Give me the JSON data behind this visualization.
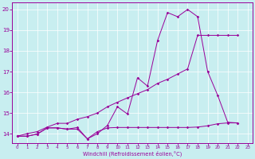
{
  "background_color": "#c8eef0",
  "line_color": "#990099",
  "xlabel": "Windchill (Refroidissement éolien,°C)",
  "xlim": [
    -0.5,
    23.5
  ],
  "ylim": [
    13.55,
    20.35
  ],
  "xtick_vals": [
    0,
    1,
    2,
    3,
    4,
    5,
    6,
    7,
    8,
    9,
    10,
    11,
    12,
    13,
    14,
    15,
    16,
    17,
    18,
    19,
    20,
    21,
    22,
    23
  ],
  "ytick_vals": [
    14,
    15,
    16,
    17,
    18,
    19,
    20
  ],
  "lines": [
    {
      "x": [
        0,
        1,
        2,
        3,
        4,
        5,
        6,
        7,
        8,
        9,
        10,
        11,
        12,
        13,
        14,
        15,
        16,
        17,
        18,
        19,
        20,
        21,
        22
      ],
      "y": [
        13.88,
        13.88,
        13.98,
        14.28,
        14.28,
        14.22,
        14.22,
        13.75,
        14.1,
        14.28,
        14.3,
        14.3,
        14.3,
        14.3,
        14.3,
        14.3,
        14.3,
        14.3,
        14.32,
        14.38,
        14.48,
        14.52,
        14.52
      ]
    },
    {
      "x": [
        0,
        1,
        2,
        3,
        4,
        5,
        6,
        7,
        8,
        9,
        10,
        11,
        12,
        13,
        14,
        15,
        16,
        17,
        18,
        19,
        20,
        21,
        22
      ],
      "y": [
        13.88,
        13.88,
        13.98,
        14.28,
        14.28,
        14.22,
        14.3,
        13.75,
        14.0,
        14.4,
        15.3,
        14.95,
        16.7,
        16.3,
        18.5,
        19.85,
        19.65,
        20.0,
        19.65,
        17.0,
        15.85,
        14.55,
        14.52
      ]
    },
    {
      "x": [
        0,
        1,
        2,
        3,
        4,
        5,
        6,
        7,
        8,
        9,
        10,
        11,
        12,
        13,
        14,
        15,
        16,
        17,
        18,
        19,
        20,
        21,
        22
      ],
      "y": [
        13.88,
        14.0,
        14.1,
        14.32,
        14.5,
        14.5,
        14.7,
        14.82,
        15.0,
        15.3,
        15.52,
        15.73,
        15.93,
        16.13,
        16.43,
        16.63,
        16.88,
        17.13,
        18.75,
        18.75,
        18.75,
        18.75,
        18.75
      ]
    },
    {
      "x": [
        0,
        1,
        2,
        3,
        4,
        5,
        6,
        7,
        8,
        9,
        10,
        11,
        12,
        13,
        14,
        15,
        16,
        17,
        18,
        19,
        20,
        21,
        22
      ],
      "y": [
        13.88,
        13.88,
        13.98,
        14.28,
        14.28,
        14.22,
        14.3,
        13.75,
        14.0,
        14.4,
        15.3,
        14.95,
        16.7,
        16.3,
        18.5,
        19.85,
        19.65,
        20.0,
        19.65,
        17.0,
        15.85,
        14.55,
        14.52
      ]
    }
  ]
}
